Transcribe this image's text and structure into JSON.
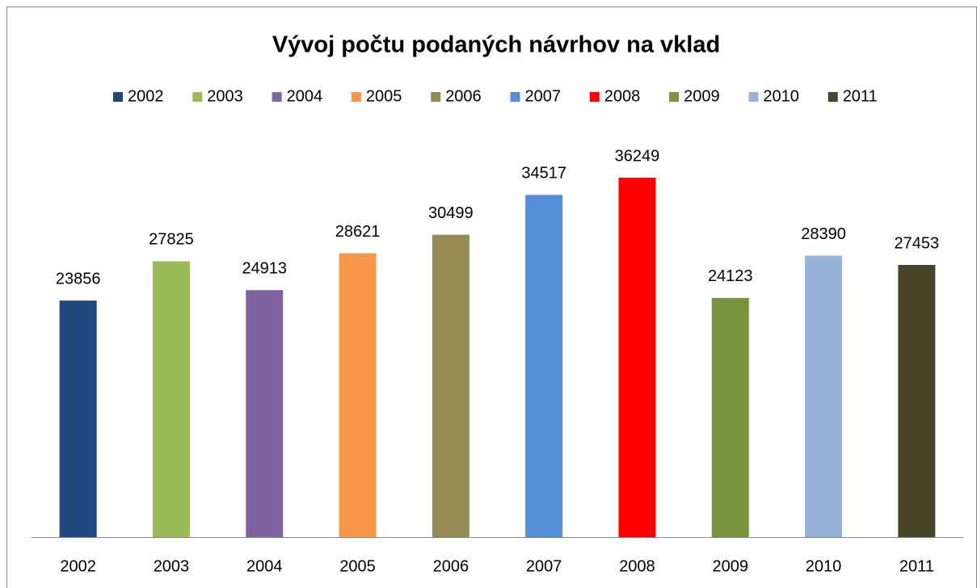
{
  "chart_data": {
    "type": "bar",
    "title": "Vývoj počtu podaných návrhov na vklad",
    "categories": [
      "2002",
      "2003",
      "2004",
      "2005",
      "2006",
      "2007",
      "2008",
      "2009",
      "2010",
      "2011"
    ],
    "values": [
      23856,
      27825,
      24913,
      28621,
      30499,
      34517,
      36249,
      24123,
      28390,
      27453
    ],
    "colors": [
      "#1f497d",
      "#9bbb59",
      "#8064a2",
      "#f79646",
      "#948a54",
      "#558ed5",
      "#ff0000",
      "#77933c",
      "#95b3d7",
      "#4a452a"
    ],
    "ylim": [
      0,
      40000
    ],
    "legend": "top"
  }
}
